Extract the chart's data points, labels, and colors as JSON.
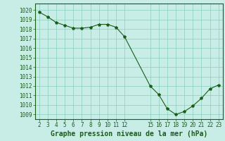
{
  "x": [
    2,
    3,
    4,
    5,
    6,
    7,
    8,
    9,
    10,
    11,
    12,
    15,
    16,
    17,
    18,
    19,
    20,
    21,
    22,
    23
  ],
  "y": [
    1019.8,
    1019.3,
    1018.7,
    1018.4,
    1018.1,
    1018.1,
    1018.2,
    1018.5,
    1018.5,
    1018.2,
    1017.2,
    1012.0,
    1011.1,
    1009.6,
    1009.0,
    1009.3,
    1009.9,
    1010.7,
    1011.7,
    1012.1
  ],
  "line_color": "#1a5c1a",
  "marker": "*",
  "marker_size": 3,
  "background_color": "#c8ede6",
  "grid_color": "#88ccbb",
  "xlabel": "Graphe pression niveau de la mer (hPa)",
  "xlabel_fontsize": 7,
  "ylabel_ticks": [
    1009,
    1010,
    1011,
    1012,
    1013,
    1014,
    1015,
    1016,
    1017,
    1018,
    1019,
    1020
  ],
  "xticks": [
    2,
    3,
    4,
    5,
    6,
    7,
    8,
    9,
    10,
    11,
    12,
    15,
    16,
    17,
    18,
    19,
    20,
    21,
    22,
    23
  ],
  "ylim": [
    1008.5,
    1020.7
  ],
  "xlim": [
    1.5,
    23.5
  ],
  "tick_fontsize": 5.5,
  "tick_color": "#1a5c1a",
  "border_color": "#1a5c1a"
}
